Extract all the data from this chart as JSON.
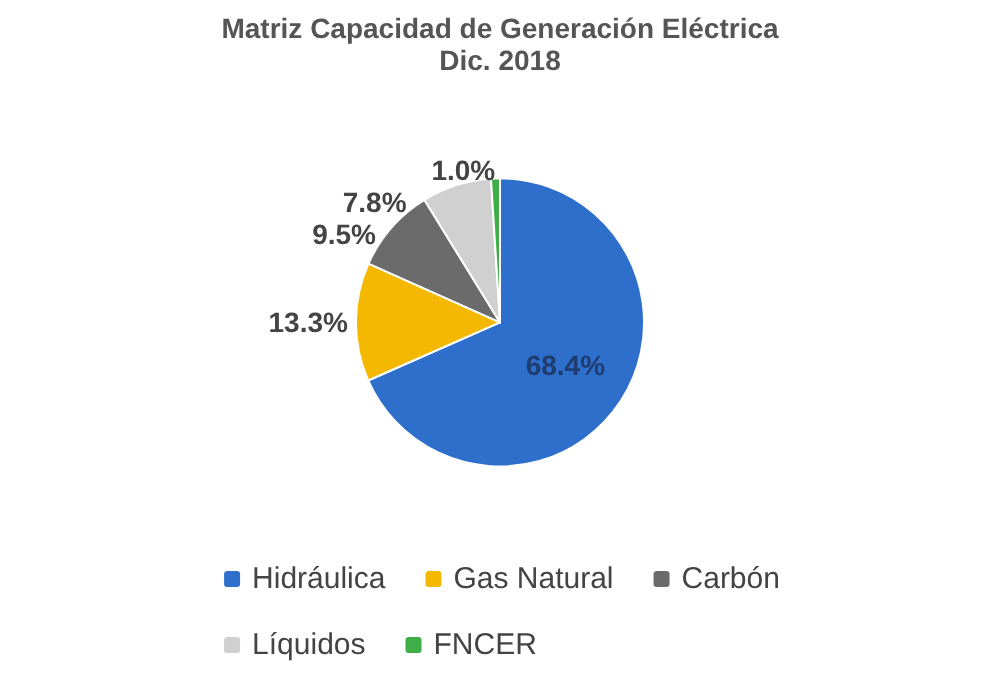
{
  "chart_data": {
    "type": "pie",
    "title": "Matriz Capacidad de Generación Eléctrica",
    "subtitle": "Dic. 2018",
    "categories": [
      "Hidráulica",
      "Gas Natural",
      "Carbón",
      "Líquidos",
      "FNCER"
    ],
    "values": [
      68.4,
      13.3,
      9.5,
      7.8,
      1.0
    ],
    "colors": [
      "#2e6fcc",
      "#f5b800",
      "#6b6b6b",
      "#d0d0d0",
      "#3fae49"
    ],
    "value_labels": [
      "68.4%",
      "13.3%",
      "9.5%",
      "7.8%",
      "1.0%"
    ],
    "legend": "bottom"
  }
}
